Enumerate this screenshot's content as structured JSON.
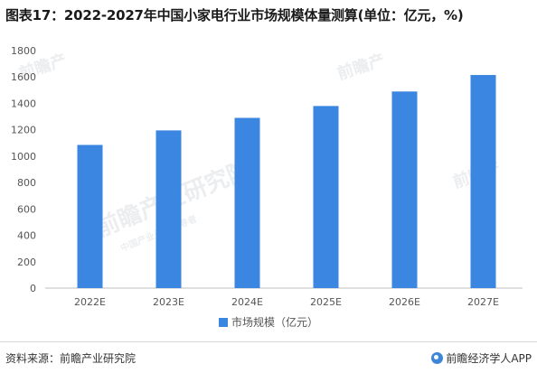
{
  "title": "图表17：2022-2027年中国小家电行业市场规模体量测算(单位：亿元，%)",
  "chart_data": {
    "type": "bar",
    "categories": [
      "2022E",
      "2023E",
      "2024E",
      "2025E",
      "2026E",
      "2027E"
    ],
    "series": [
      {
        "name": "市场规模（亿元）",
        "values": [
          1085,
          1195,
          1290,
          1380,
          1490,
          1615
        ]
      }
    ],
    "title": "",
    "xlabel": "",
    "ylabel": "",
    "ylim": [
      0,
      1800
    ],
    "yticks": [
      0,
      200,
      400,
      600,
      800,
      1000,
      1200,
      1400,
      1600,
      1800
    ],
    "grid": false,
    "legend_position": "bottom",
    "bar_color": "#3b86e0"
  },
  "watermark": {
    "brand": "前瞻产业研究院",
    "small": "前瞻产",
    "tagline": "中国产业咨询领导者"
  },
  "footer": {
    "source": "资料来源：前瞻产业研究院",
    "brand": "前瞻经济学人APP"
  }
}
